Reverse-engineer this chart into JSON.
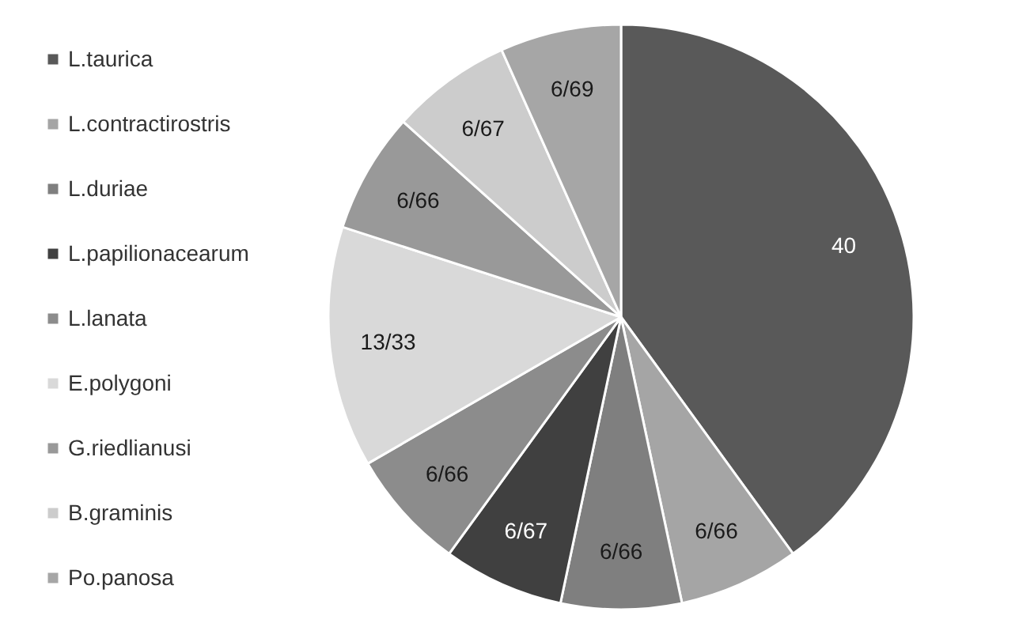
{
  "chart_data": {
    "type": "pie",
    "categories": [
      "L.taurica",
      "L.contractirostris",
      "L.duriae",
      "L.papilionacearum",
      "L.lanata",
      "E.polygoni",
      "G.riedlianusi",
      "B.graminis",
      "Po.panosa"
    ],
    "values": [
      40,
      6.66,
      6.66,
      6.67,
      6.66,
      13.33,
      6.66,
      6.67,
      6.69
    ],
    "value_labels": [
      "40",
      "6/66",
      "6/66",
      "6/67",
      "6/66",
      "13/33",
      "6/66",
      "6/67",
      "6/69"
    ],
    "colors": [
      "#595959",
      "#a5a5a5",
      "#7f7f7f",
      "#404040",
      "#8c8c8c",
      "#d9d9d9",
      "#999999",
      "#cccccc",
      "#a6a6a6"
    ],
    "legend": "left"
  }
}
